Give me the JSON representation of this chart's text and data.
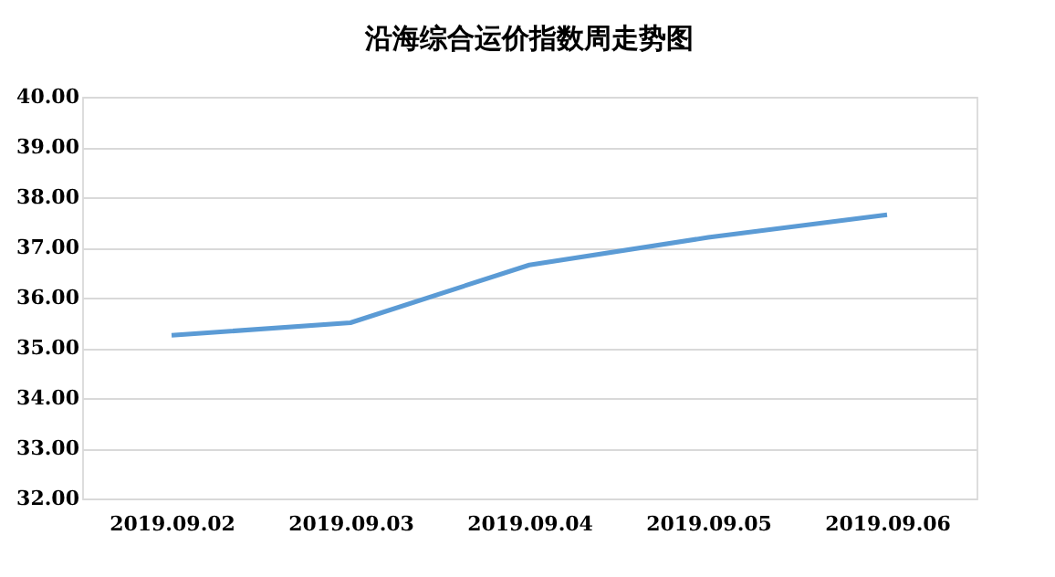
{
  "chart_data": {
    "type": "line",
    "title": "沿海综合运价指数周走势图",
    "categories": [
      "2019.09.02",
      "2019.09.03",
      "2019.09.04",
      "2019.09.05",
      "2019.09.06"
    ],
    "series": [
      {
        "color": "#5b9bd5",
        "values": [
          35.25,
          35.5,
          36.65,
          37.2,
          37.65
        ]
      }
    ],
    "ylim": [
      32,
      40
    ],
    "yticks": [
      {
        "value": 32,
        "label": "32.00"
      },
      {
        "value": 33,
        "label": "33.00"
      },
      {
        "value": 34,
        "label": "34.00"
      },
      {
        "value": 35,
        "label": "35.00"
      },
      {
        "value": 36,
        "label": "36.00"
      },
      {
        "value": 37,
        "label": "37.00"
      },
      {
        "value": 38,
        "label": "38.00"
      },
      {
        "value": 39,
        "label": "39.00"
      },
      {
        "value": 40,
        "label": "40.00"
      }
    ],
    "grid": "y",
    "marker": "none",
    "line_style": "solid",
    "legend": false
  }
}
